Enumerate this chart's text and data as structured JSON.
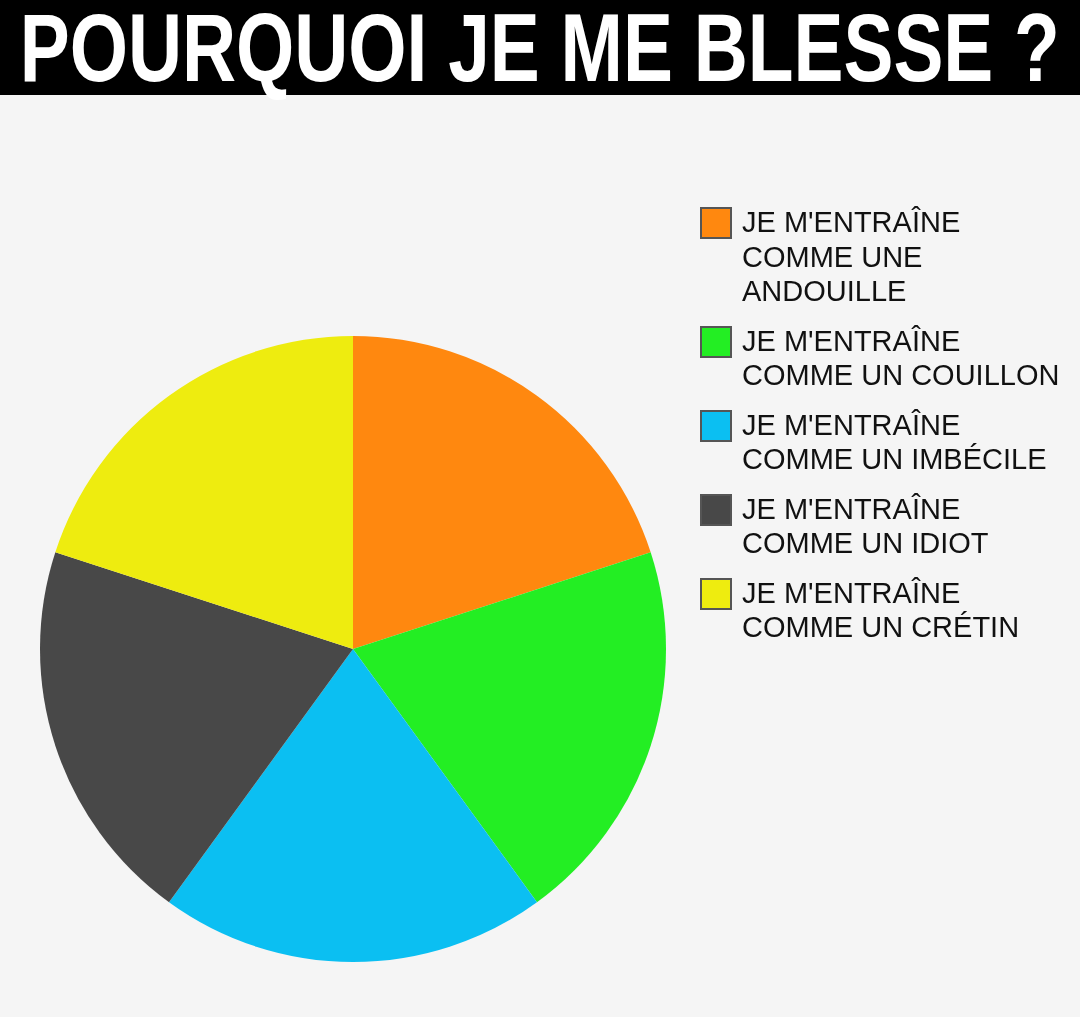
{
  "chart_data": {
    "type": "pie",
    "title": "POURQUOI JE ME BLESSE ?",
    "categories": [
      "JE M'ENTRAÎNE COMME UNE ANDOUILLE",
      "JE M'ENTRAÎNE COMME UN COUILLON",
      "JE M'ENTRAÎNE COMME UN IMBÉCILE",
      "JE M'ENTRAÎNE COMME UN IDIOT",
      "JE M'ENTRAÎNE COMME UN CRÉTIN"
    ],
    "values": [
      20,
      20,
      20,
      20,
      20
    ],
    "colors": [
      "#ff880f",
      "#23ee23",
      "#0bbff2",
      "#484848",
      "#eeec0f"
    ],
    "legend": "right"
  }
}
